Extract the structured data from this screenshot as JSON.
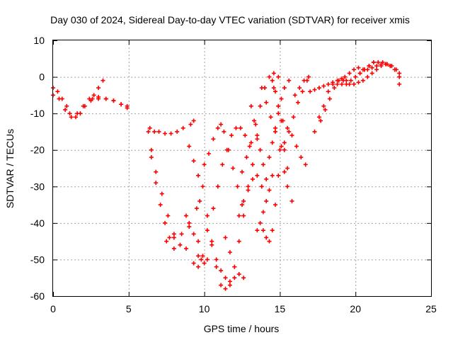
{
  "chart_data": {
    "type": "scatter",
    "title": "Day 030 of 2024, Sidereal Day-to-day VTEC variation (SDTVAR) for receiver xmis",
    "xlabel": "GPS time / hours",
    "ylabel": "SDTVAR / TECUs",
    "xlim": [
      0,
      25
    ],
    "ylim": [
      -60,
      10
    ],
    "xticks": [
      0,
      5,
      10,
      15,
      20,
      25
    ],
    "yticks": [
      10,
      0,
      -10,
      -20,
      -30,
      -40,
      -50,
      -60
    ],
    "grid": true,
    "marker": "+",
    "color": "#ff0000",
    "series": [
      {
        "x": [
          0.0,
          0.3,
          0.6,
          0.9,
          1.1
        ],
        "y": [
          -3,
          -4,
          -6,
          -8,
          -10
        ]
      },
      {
        "x": [
          0.0,
          0.4,
          0.8,
          1.2
        ],
        "y": [
          -5,
          -6,
          -9,
          -11
        ]
      },
      {
        "x": [
          1.5,
          1.8,
          2.1,
          2.4,
          2.7,
          3.0,
          3.3
        ],
        "y": [
          -11,
          -10,
          -8,
          -6,
          -5,
          -3,
          -1
        ]
      },
      {
        "x": [
          1.6,
          2.0,
          2.5,
          3.0,
          3.5,
          4.0,
          4.5,
          4.9
        ],
        "y": [
          -10,
          -8,
          -6.5,
          -6,
          -6,
          -6.5,
          -7.5,
          -8.5
        ]
      },
      {
        "x": [
          2.6,
          3.0,
          3.5,
          4.0,
          4.5,
          4.9
        ],
        "y": [
          -6,
          -5.5,
          -6,
          -6.5,
          -7.5,
          -8
        ]
      },
      {
        "x": [
          6.3,
          6.5,
          6.8,
          7.1,
          7.4,
          7.7,
          8.0
        ],
        "y": [
          -15,
          -22,
          -29,
          -35,
          -40,
          -44,
          -47
        ]
      },
      {
        "x": [
          6.4,
          6.7,
          7.0,
          7.4,
          7.8,
          8.2,
          8.6,
          9.1,
          9.3
        ],
        "y": [
          -14,
          -15,
          -15,
          -15.5,
          -15.5,
          -15,
          -14,
          -13,
          -12
        ]
      },
      {
        "x": [
          6.5,
          6.8,
          7.2,
          7.6,
          8.0,
          8.4,
          8.8,
          9.3,
          9.6
        ],
        "y": [
          -20,
          -26,
          -32,
          -38,
          -43,
          -46,
          -47,
          -51,
          -52
        ]
      },
      {
        "x": [
          7.5,
          8.0,
          8.5,
          9.0,
          9.5,
          9.7
        ],
        "y": [
          -45,
          -44,
          -43,
          -40,
          -36,
          -34
        ]
      },
      {
        "x": [
          8.8,
          9.0,
          9.3,
          9.6,
          9.9
        ],
        "y": [
          -38,
          -41,
          -43,
          -45,
          -49
        ]
      },
      {
        "x": [
          9.0,
          9.3,
          9.6,
          9.9
        ],
        "y": [
          -19,
          -23,
          -27,
          -30
        ]
      },
      {
        "x": [
          9.6,
          9.8,
          10.0,
          10.2
        ],
        "y": [
          -49,
          -50,
          -51,
          -50
        ]
      },
      {
        "x": [
          10.0,
          10.3,
          10.6,
          10.9,
          11.1,
          11.3,
          11.6,
          11.9,
          12.2,
          12.5
        ],
        "y": [
          -24,
          -21,
          -17,
          -14,
          -13,
          -15,
          -20,
          -25,
          -30,
          -35
        ]
      },
      {
        "x": [
          10.2,
          10.5,
          10.8,
          11.1,
          11.4,
          11.7,
          12.0,
          12.3,
          12.6,
          12.9,
          13.2,
          13.5
        ],
        "y": [
          -38,
          -45,
          -52,
          -57,
          -58,
          -57,
          -52,
          -45,
          -38,
          -31,
          -24,
          -17
        ]
      },
      {
        "x": [
          10.2,
          10.5,
          10.8,
          11.1,
          11.4,
          11.7,
          12.0
        ],
        "y": [
          -42,
          -46,
          -50,
          -53,
          -55,
          -56,
          -55
        ]
      },
      {
        "x": [
          10.6,
          10.9,
          11.2,
          11.5,
          11.8,
          12.1,
          12.4,
          12.7,
          13.0
        ],
        "y": [
          -36,
          -30,
          -24,
          -20,
          -16,
          -14,
          -14,
          -16,
          -19
        ]
      },
      {
        "x": [
          11.4,
          11.7,
          12.0,
          12.3,
          12.6
        ],
        "y": [
          -44,
          -48,
          -52,
          -54,
          -55
        ]
      },
      {
        "x": [
          12.3,
          12.6,
          12.9,
          13.2,
          13.5,
          13.8
        ],
        "y": [
          -38,
          -34,
          -30,
          -28,
          -27,
          -30
        ]
      },
      {
        "x": [
          12.5,
          12.8,
          13.1,
          13.4,
          13.7,
          14.0,
          14.3,
          14.6,
          14.9
        ],
        "y": [
          -26,
          -22,
          -18,
          -13,
          -8,
          -3,
          0,
          1,
          0
        ]
      },
      {
        "x": [
          13.1,
          13.3,
          13.5,
          13.7,
          13.9,
          14.1
        ],
        "y": [
          -8,
          -12,
          -16,
          -20,
          -24,
          -28
        ]
      },
      {
        "x": [
          13.8,
          14.1,
          14.4,
          14.7,
          15.0,
          15.3,
          15.5
        ],
        "y": [
          -3,
          -7,
          -11,
          -15,
          -20,
          -26,
          -30
        ]
      },
      {
        "x": [
          13.5,
          13.7,
          13.9,
          14.1,
          14.3,
          14.5
        ],
        "y": [
          -42,
          -40,
          -37,
          -34,
          -31,
          -27
        ]
      },
      {
        "x": [
          13.9,
          14.1,
          14.3,
          14.5,
          14.7,
          14.9,
          15.1
        ],
        "y": [
          -42,
          -44,
          -45,
          -42,
          -35,
          -27,
          -19
        ]
      },
      {
        "x": [
          14.3,
          14.5,
          14.7,
          14.9,
          15.1,
          15.3,
          15.6
        ],
        "y": [
          -22,
          -18,
          -14,
          -10,
          -6,
          -3,
          -1
        ]
      },
      {
        "x": [
          14.5,
          14.7,
          14.9,
          15.1,
          15.3,
          15.5,
          15.8
        ],
        "y": [
          -1,
          -4,
          -8,
          -12,
          -18,
          -25,
          -34
        ]
      },
      {
        "x": [
          14.6,
          14.9,
          15.2,
          15.5,
          15.8,
          16.1,
          16.4,
          16.7
        ],
        "y": [
          -3,
          -8,
          -12,
          -14,
          -16,
          -19,
          -22,
          -24
        ]
      },
      {
        "x": [
          15.3,
          15.6,
          15.9,
          16.2,
          16.5,
          16.8
        ],
        "y": [
          -20,
          -15,
          -11,
          -7,
          -4,
          -1
        ]
      },
      {
        "x": [
          16.0,
          16.3,
          16.6,
          16.9
        ],
        "y": [
          -5,
          -3,
          -1,
          0
        ]
      },
      {
        "x": [
          17.0,
          17.3,
          17.6,
          17.9,
          18.2,
          18.5,
          18.8,
          19.1,
          19.4
        ],
        "y": [
          -4,
          -3.5,
          -3,
          -2.5,
          -2,
          -1.5,
          -1,
          -0.5,
          -1
        ]
      },
      {
        "x": [
          17.3,
          17.6,
          17.9,
          18.2,
          18.5,
          18.8,
          19.1,
          19.4,
          19.7,
          20.0,
          20.3,
          20.6,
          20.9,
          21.2
        ],
        "y": [
          -15,
          -11,
          -8,
          -4,
          -2,
          -2,
          -2,
          -2,
          -1,
          0,
          1,
          2,
          3,
          4
        ]
      },
      {
        "x": [
          17.7,
          18.0,
          18.3,
          18.6,
          18.9,
          19.2
        ],
        "y": [
          -12,
          -9,
          -6,
          -3,
          -1,
          -1
        ]
      },
      {
        "x": [
          19.3,
          19.6,
          19.9,
          20.2,
          20.5,
          20.8,
          21.1,
          21.4,
          21.7,
          22.0,
          22.3,
          22.6,
          22.9
        ],
        "y": [
          0,
          1,
          2,
          2.5,
          2,
          2,
          2.5,
          3,
          3.5,
          3.5,
          3,
          2,
          0
        ]
      },
      {
        "x": [
          19.6,
          19.9,
          20.2,
          20.5,
          20.8,
          21.1,
          21.4,
          21.7,
          22.0,
          22.3,
          22.6,
          22.9
        ],
        "y": [
          -2,
          -2,
          -1.5,
          -1,
          0,
          1,
          2,
          3,
          3.5,
          3,
          2,
          1
        ]
      },
      {
        "x": [
          20.3,
          20.6,
          20.9,
          21.2,
          21.5,
          21.8,
          22.1,
          22.4,
          22.7,
          22.9
        ],
        "y": [
          1,
          2,
          3,
          4,
          4,
          4,
          3.5,
          3,
          2,
          -2
        ]
      }
    ]
  }
}
